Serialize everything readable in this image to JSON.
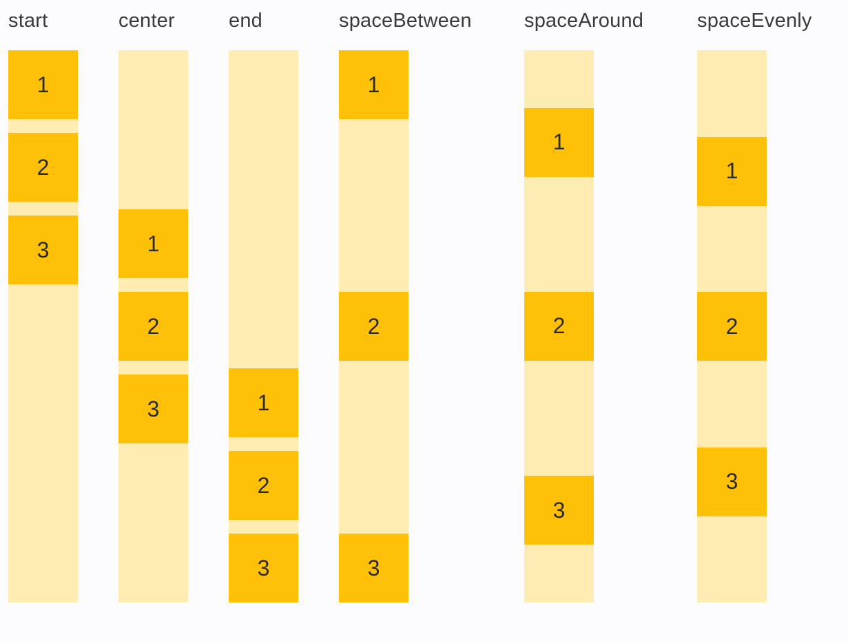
{
  "colors": {
    "item": "#FFC107",
    "track": "#FFECB3",
    "background": "#FCFCFF",
    "label_text": "#3B3B3B",
    "item_text": "#2B2B2B"
  },
  "columns": [
    {
      "label": "start",
      "items": [
        "1",
        "2",
        "3"
      ]
    },
    {
      "label": "center",
      "items": [
        "1",
        "2",
        "3"
      ]
    },
    {
      "label": "end",
      "items": [
        "1",
        "2",
        "3"
      ]
    },
    {
      "label": "spaceBetween",
      "items": [
        "1",
        "2",
        "3"
      ]
    },
    {
      "label": "spaceAround",
      "items": [
        "1",
        "2",
        "3"
      ]
    },
    {
      "label": "spaceEvenly",
      "items": [
        "1",
        "2",
        "3"
      ]
    }
  ]
}
